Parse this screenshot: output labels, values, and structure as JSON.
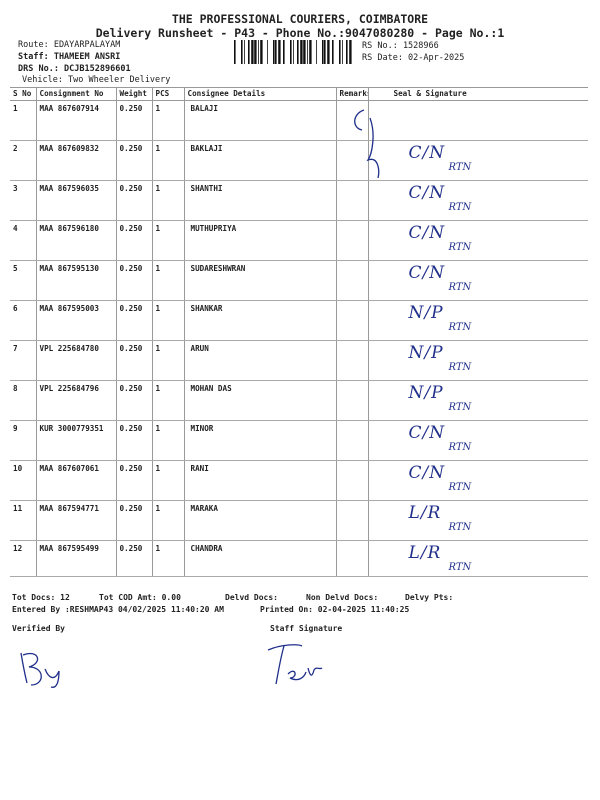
{
  "header": {
    "company": "THE PROFESSIONAL COURIERS, COIMBATORE",
    "subtitle": "Delivery Runsheet - P43 - Phone No.:9047080280 - Page No.:1",
    "route": "Route: EDAYARPALAYAM",
    "staff": "Staff: THAMEEM ANSRI",
    "drs": "DRS No.: DCJB152896601",
    "vehicle": "Vehicle: Two Wheeler Delivery",
    "rs_no": "RS No.: 1528966",
    "rs_date": "RS Date: 02-Apr-2025"
  },
  "table": {
    "columns": [
      "S No",
      "Consignment No",
      "Weight",
      "PCS",
      "Consignee Details",
      "Remarks",
      "Seal & Signature"
    ],
    "rows": [
      {
        "sno": "1",
        "consignment": "MAA 867607914",
        "weight": "0.250",
        "pcs": "1",
        "consignee": "BALAJI",
        "mark": "",
        "code": ""
      },
      {
        "sno": "2",
        "consignment": "MAA 867609832",
        "weight": "0.250",
        "pcs": "1",
        "consignee": "BAKLAJI",
        "mark": "C/N",
        "code": "RTN"
      },
      {
        "sno": "3",
        "consignment": "MAA 867596035",
        "weight": "0.250",
        "pcs": "1",
        "consignee": "SHANTHI",
        "mark": "C/N",
        "code": "RTN"
      },
      {
        "sno": "4",
        "consignment": "MAA 867596180",
        "weight": "0.250",
        "pcs": "1",
        "consignee": "MUTHUPRIYA",
        "mark": "C/N",
        "code": "RTN"
      },
      {
        "sno": "5",
        "consignment": "MAA 867595130",
        "weight": "0.250",
        "pcs": "1",
        "consignee": "SUDARESHWRAN",
        "mark": "C/N",
        "code": "RTN"
      },
      {
        "sno": "6",
        "consignment": "MAA 867595003",
        "weight": "0.250",
        "pcs": "1",
        "consignee": "SHANKAR",
        "mark": "N/P",
        "code": "RTN"
      },
      {
        "sno": "7",
        "consignment": "VPL 225684780",
        "weight": "0.250",
        "pcs": "1",
        "consignee": "ARUN",
        "mark": "N/P",
        "code": "RTN"
      },
      {
        "sno": "8",
        "consignment": "VPL 225684796",
        "weight": "0.250",
        "pcs": "1",
        "consignee": "MOHAN DAS",
        "mark": "N/P",
        "code": "RTN"
      },
      {
        "sno": "9",
        "consignment": "KUR 3000779351",
        "weight": "0.250",
        "pcs": "1",
        "consignee": "MINOR",
        "mark": "C/N",
        "code": "RTN"
      },
      {
        "sno": "10",
        "consignment": "MAA 867607061",
        "weight": "0.250",
        "pcs": "1",
        "consignee": "RANI",
        "mark": "C/N",
        "code": "RTN"
      },
      {
        "sno": "11",
        "consignment": "MAA 867594771",
        "weight": "0.250",
        "pcs": "1",
        "consignee": "MARAKA",
        "mark": "L/R",
        "code": "RTN"
      },
      {
        "sno": "12",
        "consignment": "MAA 867595499",
        "weight": "0.250",
        "pcs": "1",
        "consignee": "CHANDRA",
        "mark": "L/R",
        "code": "RTN"
      }
    ]
  },
  "footer": {
    "tot_docs": "Tot Docs:  12",
    "tot_cod": "Tot COD Amt:    0.00",
    "delvd": "Delvd Docs:",
    "non_delvd": "Non Delvd Docs:",
    "delvy_pts": "Delvy Pts:",
    "entered": "Entered By :RESHMAP43 04/02/2025 11:40:20 AM",
    "printed": "Printed On: 02-04-2025 11:40:25",
    "verified_by": "Verified By",
    "staff_signature": "Staff Signature"
  },
  "colors": {
    "ink": "#1f2f8a",
    "text": "#222222"
  }
}
